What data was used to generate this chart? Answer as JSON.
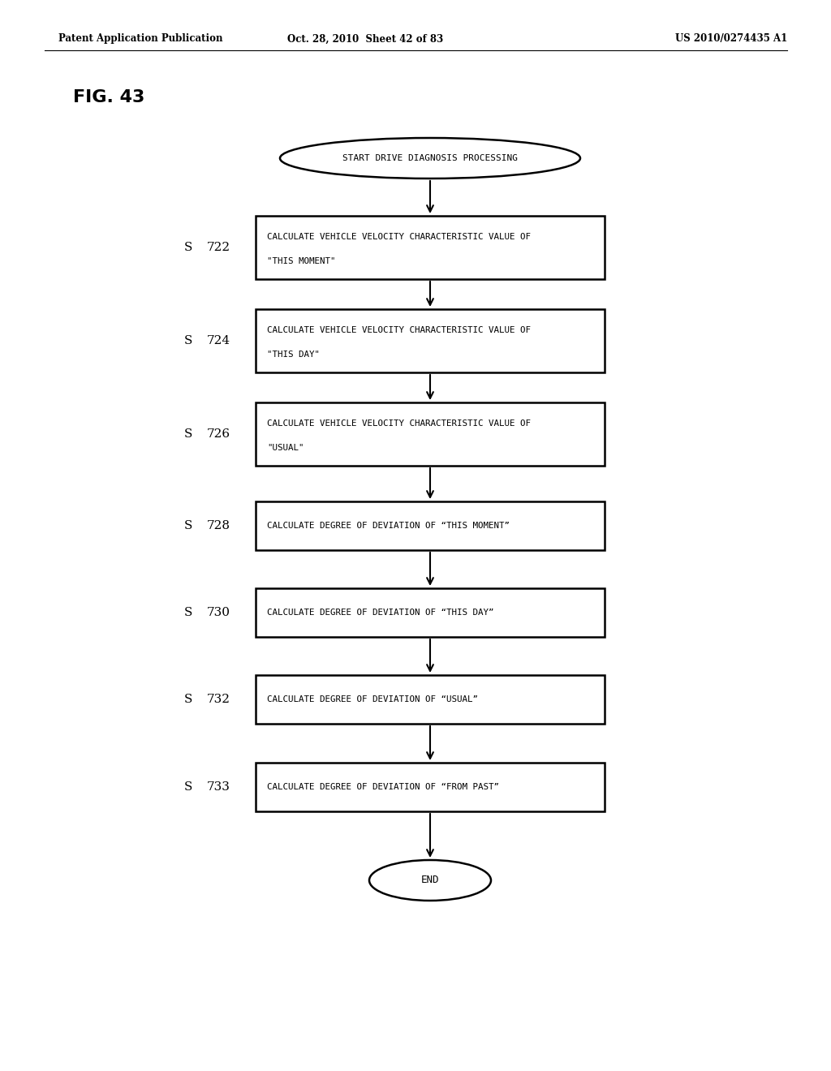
{
  "header_left": "Patent Application Publication",
  "header_mid": "Oct. 28, 2010  Sheet 42 of 83",
  "header_right": "US 2010/0274435 A1",
  "fig_label": "FIG. 43",
  "start_text": "START DRIVE DIAGNOSIS PROCESSING",
  "end_text": "END",
  "steps": [
    {
      "label": "S  722",
      "text": "CALCULATE VEHICLE VELOCITY CHARACTERISTIC VALUE OF\n\"THIS MOMENT\""
    },
    {
      "label": "S  724",
      "text": "CALCULATE VEHICLE VELOCITY CHARACTERISTIC VALUE OF\n\"THIS DAY\""
    },
    {
      "label": "S  726",
      "text": "CALCULATE VEHICLE VELOCITY CHARACTERISTIC VALUE OF\n\"USUAL\""
    },
    {
      "label": "S  728",
      "text": "CALCULATE DEGREE OF DEVIATION OF “THIS MOMENT”"
    },
    {
      "label": "S  730",
      "text": "CALCULATE DEGREE OF DEVIATION OF “THIS DAY”"
    },
    {
      "label": "S  732",
      "text": "CALCULATE DEGREE OF DEVIATION OF “USUAL”"
    },
    {
      "label": "S  733",
      "text": "CALCULATE DEGREE OF DEVIATION OF “FROM PAST”"
    }
  ],
  "bg_color": "#ffffff",
  "box_color": "#000000",
  "text_color": "#000000"
}
